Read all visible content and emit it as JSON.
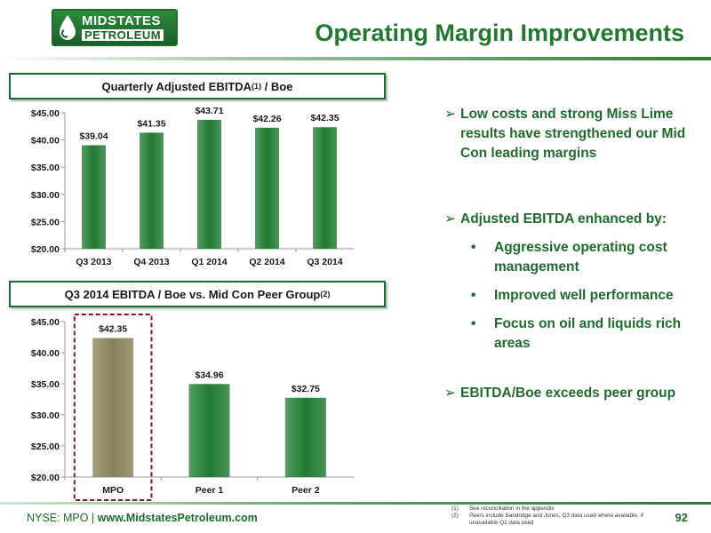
{
  "header": {
    "logo_top": "MIDSTATES",
    "logo_bottom": "PETROLEUM",
    "title": "Operating Margin Improvements"
  },
  "charts": {
    "chart1_title": "Quarterly Adjusted EBITDA",
    "chart1_sup": "(1)",
    "chart1_suffix": " / Boe",
    "chart2_title": "Q3 2014 EBITDA / Boe vs. Mid Con Peer Group",
    "chart2_sup": "(2)"
  },
  "chart_data": [
    {
      "type": "bar",
      "title": "Quarterly Adjusted EBITDA(1) / Boe",
      "categories": [
        "Q3 2013",
        "Q4 2013",
        "Q1 2014",
        "Q2 2014",
        "Q3 2014"
      ],
      "values": [
        39.04,
        41.35,
        43.71,
        42.26,
        42.35
      ],
      "value_labels": [
        "$39.04",
        "$41.35",
        "$43.71",
        "$42.26",
        "$42.35"
      ],
      "ylim": [
        20,
        45
      ],
      "yticks": [
        "$20.00",
        "$25.00",
        "$30.00",
        "$35.00",
        "$40.00",
        "$45.00"
      ],
      "ytick_values": [
        20,
        25,
        30,
        35,
        40,
        45
      ],
      "colors": [
        "#1f7a30",
        "#1f7a30",
        "#1f7a30",
        "#1f7a30",
        "#1f7a30"
      ]
    },
    {
      "type": "bar",
      "title": "Q3 2014 EBITDA / Boe vs. Mid Con Peer Group(2)",
      "categories": [
        "MPO",
        "Peer 1",
        "Peer 2"
      ],
      "values": [
        42.35,
        34.96,
        32.75
      ],
      "value_labels": [
        "$42.35",
        "$34.96",
        "$32.75"
      ],
      "ylim": [
        20,
        45
      ],
      "yticks": [
        "$20.00",
        "$25.00",
        "$30.00",
        "$35.00",
        "$40.00",
        "$45.00"
      ],
      "ytick_values": [
        20,
        25,
        30,
        35,
        40,
        45
      ],
      "colors": [
        "#8a7f58",
        "#1f7a30",
        "#1f7a30"
      ],
      "highlighted_category": "MPO"
    }
  ],
  "bullets": {
    "b1": "Low costs and strong Miss Lime results have strengthened our Mid Con leading margins",
    "b2": "Adjusted EBITDA enhanced by:",
    "b2_subs": [
      "Aggressive operating cost management",
      "Improved well performance",
      "Focus on oil and liquids rich areas"
    ],
    "b3": "EBITDA/Boe exceeds peer group",
    "arrow_glyph": "➢",
    "dot_glyph": "•"
  },
  "footer": {
    "ticker": "NYSE: MPO | ",
    "website": "www.MidstatesPetroleum.com",
    "page_number": "92",
    "footnote_1_num": "(1)",
    "footnote_1": "See reconciliation in the appendix",
    "footnote_2_num": "(2)",
    "footnote_2": "Peers include Sandridge and Jones, Q3 data used where available, if unavailable Q2 data used"
  },
  "colors": {
    "brand_green": "#1f7a30",
    "mpo_bar": "#8a7f58",
    "highlight_box": "#8b1a1a"
  }
}
